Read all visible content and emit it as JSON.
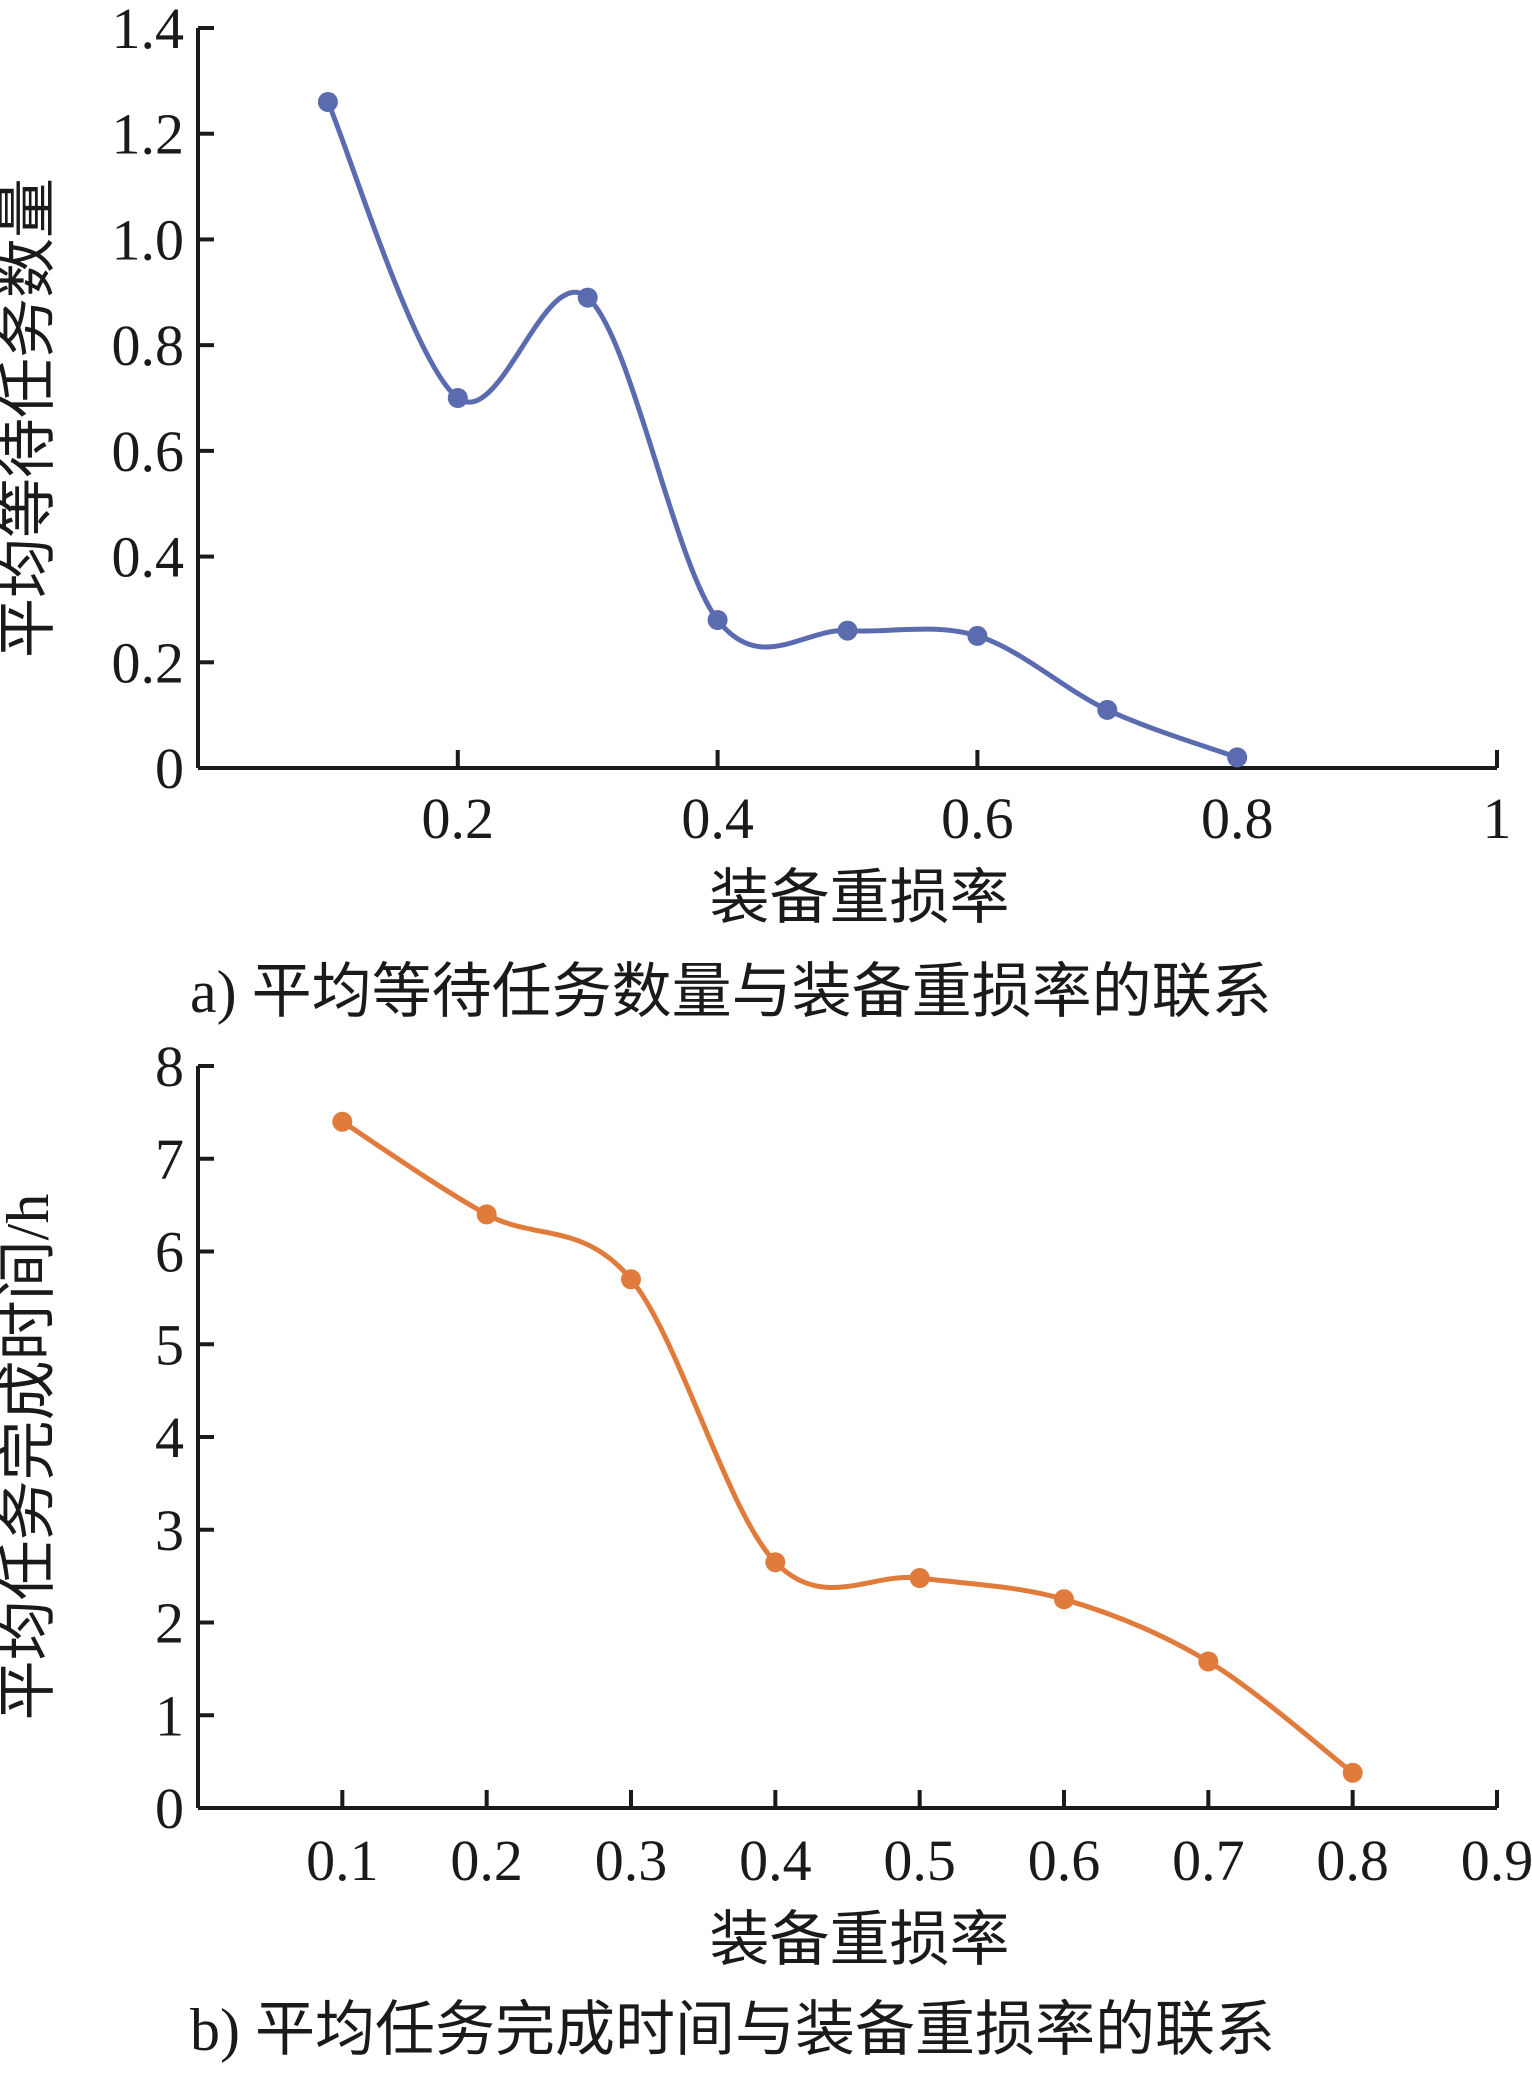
{
  "chart_data": [
    {
      "type": "line",
      "caption": "a) 平均等待任务数量与装备重损率的联系",
      "xlabel": "装备重损率",
      "ylabel": "平均等待任务数量",
      "xlim": [
        0,
        1
      ],
      "ylim": [
        0,
        1.4
      ],
      "x_ticks": [
        0.2,
        0.4,
        0.6,
        0.8,
        1
      ],
      "x_tick_labels": [
        "0.2",
        "0.4",
        "0.6",
        "0.8",
        "1"
      ],
      "y_ticks": [
        0,
        0.2,
        0.4,
        0.6,
        0.8,
        1.0,
        1.2,
        1.4
      ],
      "y_tick_labels": [
        "0",
        "0.2",
        "0.4",
        "0.6",
        "0.8",
        "1.0",
        "1.2",
        "1.4"
      ],
      "color": "#5b6bb0",
      "grid": false,
      "smooth": true,
      "series": [
        {
          "x": [
            0.1,
            0.2,
            0.3,
            0.4,
            0.5,
            0.6,
            0.7,
            0.8
          ],
          "values": [
            1.26,
            0.7,
            0.89,
            0.28,
            0.26,
            0.25,
            0.11,
            0.02
          ]
        }
      ]
    },
    {
      "type": "line",
      "caption": "b) 平均任务完成时间与装备重损率的联系",
      "xlabel": "装备重损率",
      "ylabel": "平均任务完成时间/h",
      "xlim": [
        0,
        0.9
      ],
      "ylim": [
        0,
        8
      ],
      "x_ticks": [
        0.1,
        0.2,
        0.3,
        0.4,
        0.5,
        0.6,
        0.7,
        0.8,
        0.9
      ],
      "x_tick_labels": [
        "0.1",
        "0.2",
        "0.3",
        "0.4",
        "0.5",
        "0.6",
        "0.7",
        "0.8",
        "0.9"
      ],
      "y_ticks": [
        0,
        1,
        2,
        3,
        4,
        5,
        6,
        7,
        8
      ],
      "y_tick_labels": [
        "0",
        "1",
        "2",
        "3",
        "4",
        "5",
        "6",
        "7",
        "8"
      ],
      "color": "#e07b3c",
      "grid": false,
      "smooth": true,
      "series": [
        {
          "x": [
            0.1,
            0.2,
            0.3,
            0.4,
            0.5,
            0.6,
            0.7,
            0.8
          ],
          "values": [
            7.4,
            6.4,
            5.7,
            2.65,
            2.48,
            2.25,
            1.58,
            0.38
          ]
        }
      ]
    }
  ]
}
